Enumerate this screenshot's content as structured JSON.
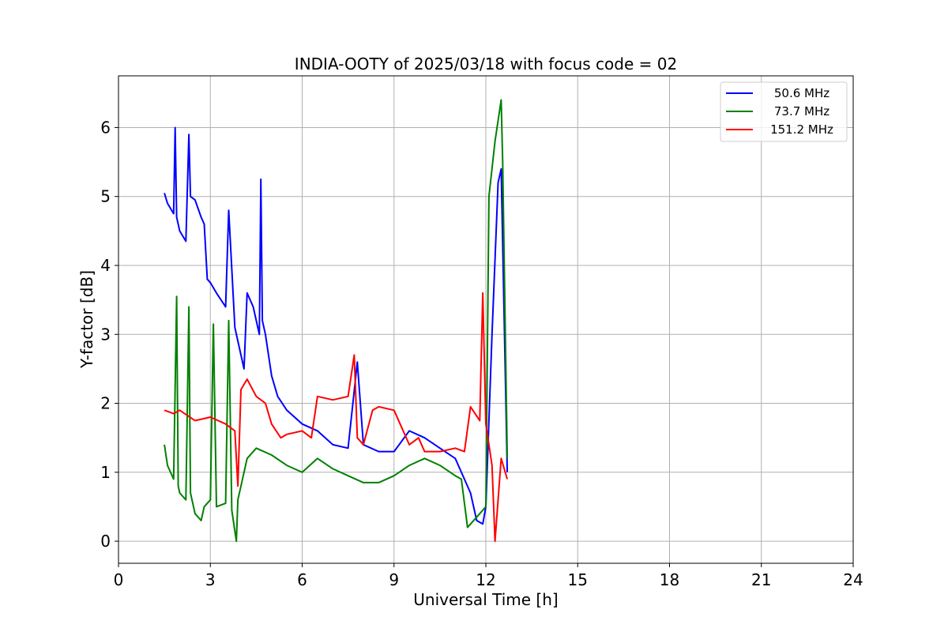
{
  "chart_data": {
    "type": "line",
    "title": "INDIA-OOTY of 2025/03/18 with focus code = 02",
    "xlabel": "Universal Time [h]",
    "ylabel": "Y-factor [dB]",
    "xlim": [
      0,
      24
    ],
    "ylim": [
      -0.32,
      6.75
    ],
    "xticks": [
      0,
      3,
      6,
      9,
      12,
      15,
      18,
      21,
      24
    ],
    "yticks": [
      0,
      1,
      2,
      3,
      4,
      5,
      6
    ],
    "grid": true,
    "legend_position": "top-right",
    "series": [
      {
        "name": "50.6 MHz",
        "color": "#0000ff",
        "x": [
          1.5,
          1.6,
          1.8,
          1.85,
          1.9,
          2.0,
          2.2,
          2.3,
          2.35,
          2.5,
          2.7,
          2.8,
          2.9,
          3.0,
          3.2,
          3.5,
          3.6,
          3.8,
          4.0,
          4.1,
          4.2,
          4.4,
          4.6,
          4.65,
          4.7,
          4.8,
          5.0,
          5.2,
          5.5,
          6.0,
          6.5,
          7.0,
          7.5,
          7.8,
          8.0,
          8.5,
          9.0,
          9.5,
          10.0,
          10.5,
          11.0,
          11.5,
          11.7,
          11.9,
          12.0,
          12.2,
          12.4,
          12.5,
          12.7
        ],
        "y": [
          5.05,
          4.9,
          4.75,
          6.0,
          4.7,
          4.5,
          4.35,
          5.9,
          5.0,
          4.95,
          4.7,
          4.6,
          3.8,
          3.75,
          3.6,
          3.4,
          4.8,
          3.1,
          2.7,
          2.5,
          3.6,
          3.4,
          3.0,
          5.25,
          3.2,
          3.0,
          2.4,
          2.1,
          1.9,
          1.7,
          1.6,
          1.4,
          1.35,
          2.6,
          1.4,
          1.3,
          1.3,
          1.6,
          1.5,
          1.35,
          1.2,
          0.7,
          0.3,
          0.25,
          0.5,
          3.0,
          5.2,
          5.4,
          1.0
        ]
      },
      {
        "name": "73.7 MHz",
        "color": "#008000",
        "x": [
          1.5,
          1.6,
          1.8,
          1.9,
          1.95,
          2.0,
          2.2,
          2.3,
          2.35,
          2.5,
          2.7,
          2.8,
          3.0,
          3.1,
          3.2,
          3.5,
          3.6,
          3.7,
          3.85,
          3.9,
          4.0,
          4.2,
          4.5,
          5.0,
          5.5,
          6.0,
          6.5,
          7.0,
          7.5,
          8.0,
          8.5,
          9.0,
          9.5,
          10.0,
          10.5,
          11.0,
          11.2,
          11.4,
          11.6,
          11.8,
          12.0,
          12.1,
          12.3,
          12.5,
          12.55,
          12.7
        ],
        "y": [
          1.4,
          1.1,
          0.9,
          3.55,
          0.8,
          0.7,
          0.6,
          3.4,
          0.7,
          0.4,
          0.3,
          0.5,
          0.6,
          3.15,
          0.5,
          0.55,
          3.2,
          0.45,
          0.0,
          0.6,
          0.8,
          1.2,
          1.35,
          1.25,
          1.1,
          1.0,
          1.2,
          1.05,
          0.95,
          0.85,
          0.85,
          0.95,
          1.1,
          1.2,
          1.1,
          0.95,
          0.9,
          0.2,
          0.3,
          0.4,
          0.5,
          5.0,
          5.8,
          6.4,
          5.5,
          1.2
        ]
      },
      {
        "name": "151.2 MHz",
        "color": "#ff0000",
        "x": [
          1.5,
          1.8,
          2.0,
          2.5,
          3.0,
          3.5,
          3.8,
          3.9,
          4.0,
          4.2,
          4.5,
          4.8,
          5.0,
          5.3,
          5.5,
          6.0,
          6.3,
          6.5,
          7.0,
          7.5,
          7.7,
          7.8,
          8.0,
          8.3,
          8.5,
          9.0,
          9.5,
          9.8,
          10.0,
          10.5,
          11.0,
          11.3,
          11.5,
          11.8,
          11.9,
          12.0,
          12.2,
          12.3,
          12.5,
          12.7
        ],
        "y": [
          1.9,
          1.85,
          1.9,
          1.75,
          1.8,
          1.7,
          1.6,
          0.8,
          2.2,
          2.35,
          2.1,
          2.0,
          1.7,
          1.5,
          1.55,
          1.6,
          1.5,
          2.1,
          2.05,
          2.1,
          2.7,
          1.5,
          1.4,
          1.9,
          1.95,
          1.9,
          1.4,
          1.5,
          1.3,
          1.3,
          1.35,
          1.3,
          1.95,
          1.75,
          3.6,
          1.7,
          1.1,
          0.0,
          1.2,
          0.9
        ]
      }
    ]
  }
}
